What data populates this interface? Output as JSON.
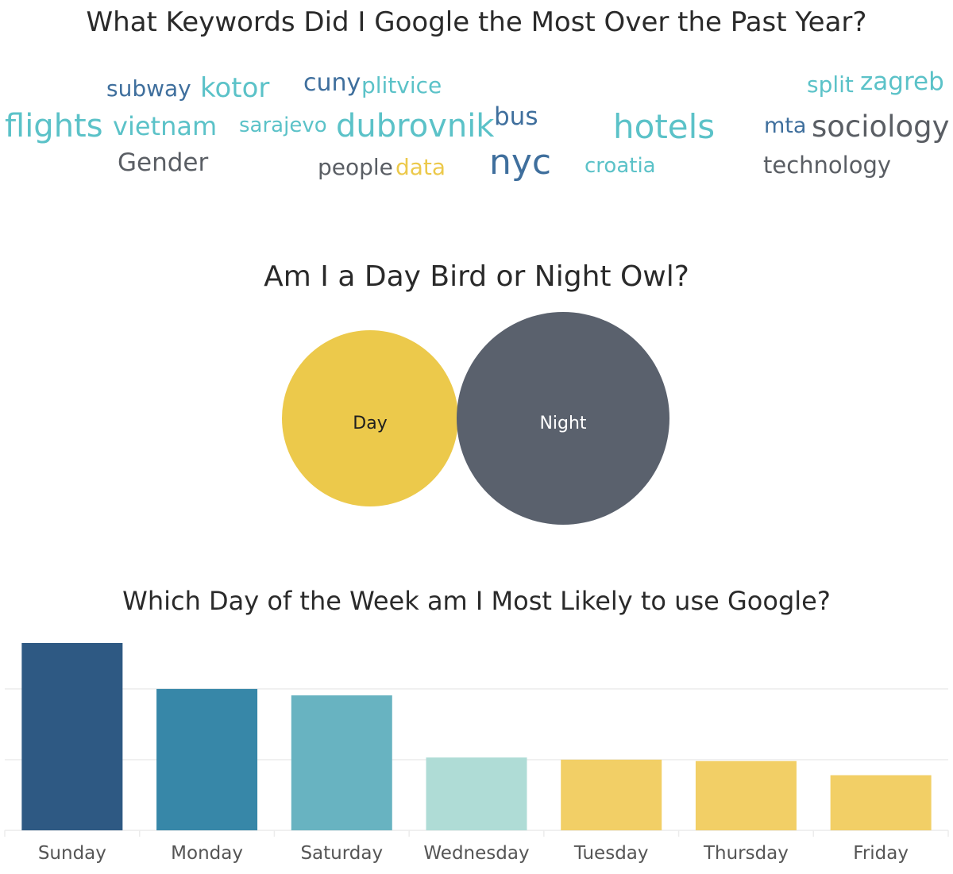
{
  "wordcloud": {
    "title": "What Keywords Did I Google the Most Over the Past Year?",
    "colors": {
      "blue": "#3f6f9d",
      "teal": "#5bc2c8",
      "gray": "#5a5e64",
      "yellow": "#ecc94b"
    },
    "words": [
      {
        "text": "subway",
        "color": "blue"
      },
      {
        "text": "kotor",
        "color": "teal"
      },
      {
        "text": "cuny",
        "color": "blue"
      },
      {
        "text": "plitvice",
        "color": "teal"
      },
      {
        "text": "split",
        "color": "teal"
      },
      {
        "text": "zagreb",
        "color": "teal"
      },
      {
        "text": "flights",
        "color": "teal"
      },
      {
        "text": "vietnam",
        "color": "teal"
      },
      {
        "text": "sarajevo",
        "color": "teal"
      },
      {
        "text": "dubrovnik",
        "color": "teal"
      },
      {
        "text": "bus",
        "color": "blue"
      },
      {
        "text": "hotels",
        "color": "teal"
      },
      {
        "text": "mta",
        "color": "blue"
      },
      {
        "text": "sociology",
        "color": "gray"
      },
      {
        "text": "Gender",
        "color": "gray"
      },
      {
        "text": "people",
        "color": "gray"
      },
      {
        "text": "data",
        "color": "yellow"
      },
      {
        "text": "nyc",
        "color": "blue"
      },
      {
        "text": "croatia",
        "color": "teal"
      },
      {
        "text": "technology",
        "color": "gray"
      }
    ]
  },
  "day_night": {
    "title": "Am I a Day Bird or Night Owl?",
    "day_label": "Day",
    "night_label": "Night",
    "day_color": "#ecc94b",
    "night_color": "#5a616d",
    "day_label_color": "#1f1f1f",
    "night_label_color": "#ffffff"
  },
  "chart_data": {
    "type": "bar",
    "title": "Which Day of the Week am I Most Likely to use Google?",
    "xlabel": "",
    "ylabel": "",
    "categories": [
      "Sunday",
      "Monday",
      "Saturday",
      "Wednesday",
      "Tuesday",
      "Thursday",
      "Friday"
    ],
    "values": [
      265,
      200,
      191,
      103,
      100,
      98,
      78
    ],
    "colors": [
      "#2e5983",
      "#3787a8",
      "#68b3c1",
      "#afdcd6",
      "#f2cf66",
      "#f2cf66",
      "#f2cf66"
    ],
    "ylim": [
      0,
      265
    ],
    "gridlines": [
      100,
      200
    ],
    "grid": true,
    "axis_label_color": "#555555",
    "grid_color": "#ececec"
  }
}
